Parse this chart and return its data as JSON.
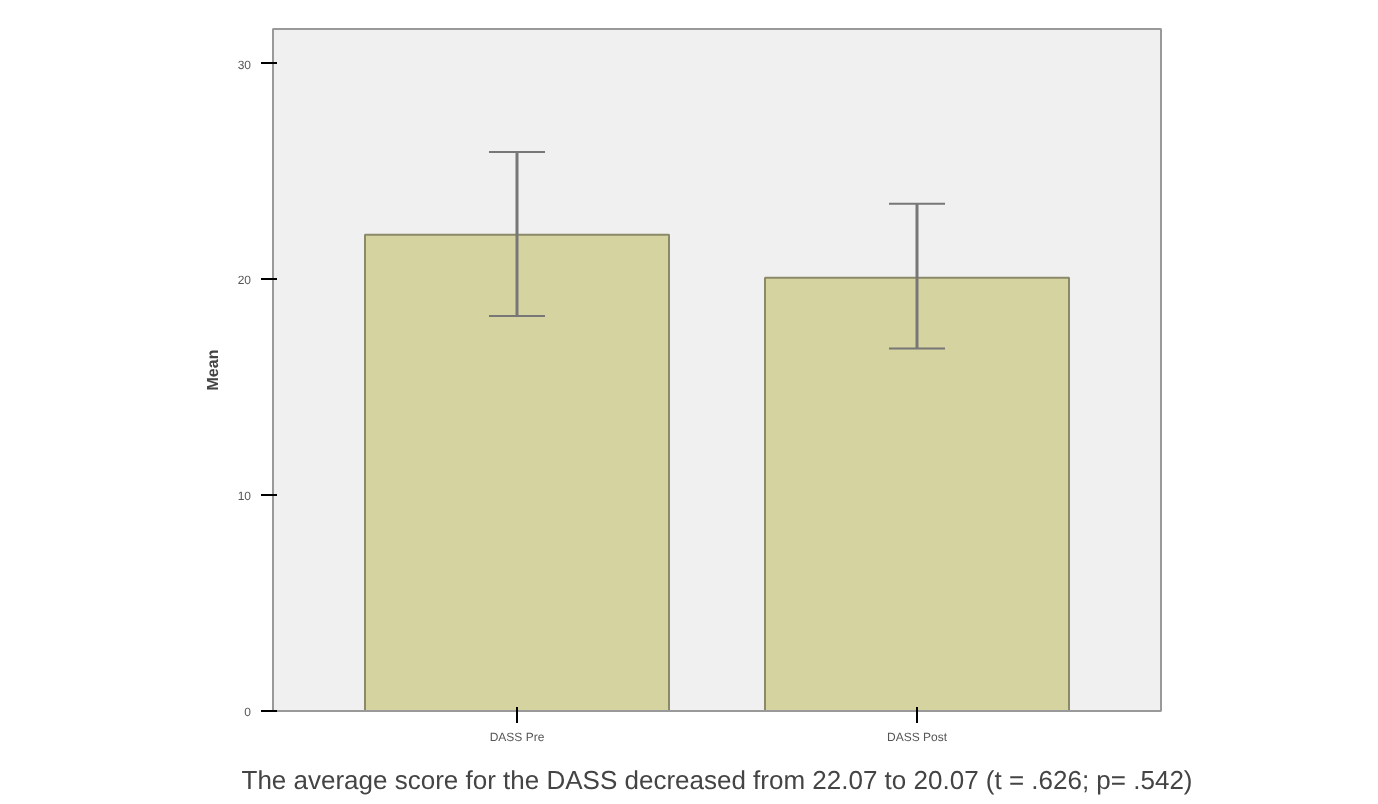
{
  "chart_data": {
    "type": "bar",
    "ylabel": "Mean",
    "categories": [
      "DASS Pre",
      "DASS Post"
    ],
    "values": [
      22.07,
      20.07
    ],
    "color": "#d5d3a0",
    "errors": [
      [
        18.3,
        25.9
      ],
      [
        16.8,
        23.5
      ]
    ],
    "ylim": [
      0,
      31.6
    ],
    "yticks": [
      0,
      10,
      20,
      30
    ],
    "grid": false,
    "annotations": [
      "The average score for the DASS decreased from 22.07 to 20.07 (t = .626; p= .542)"
    ]
  }
}
